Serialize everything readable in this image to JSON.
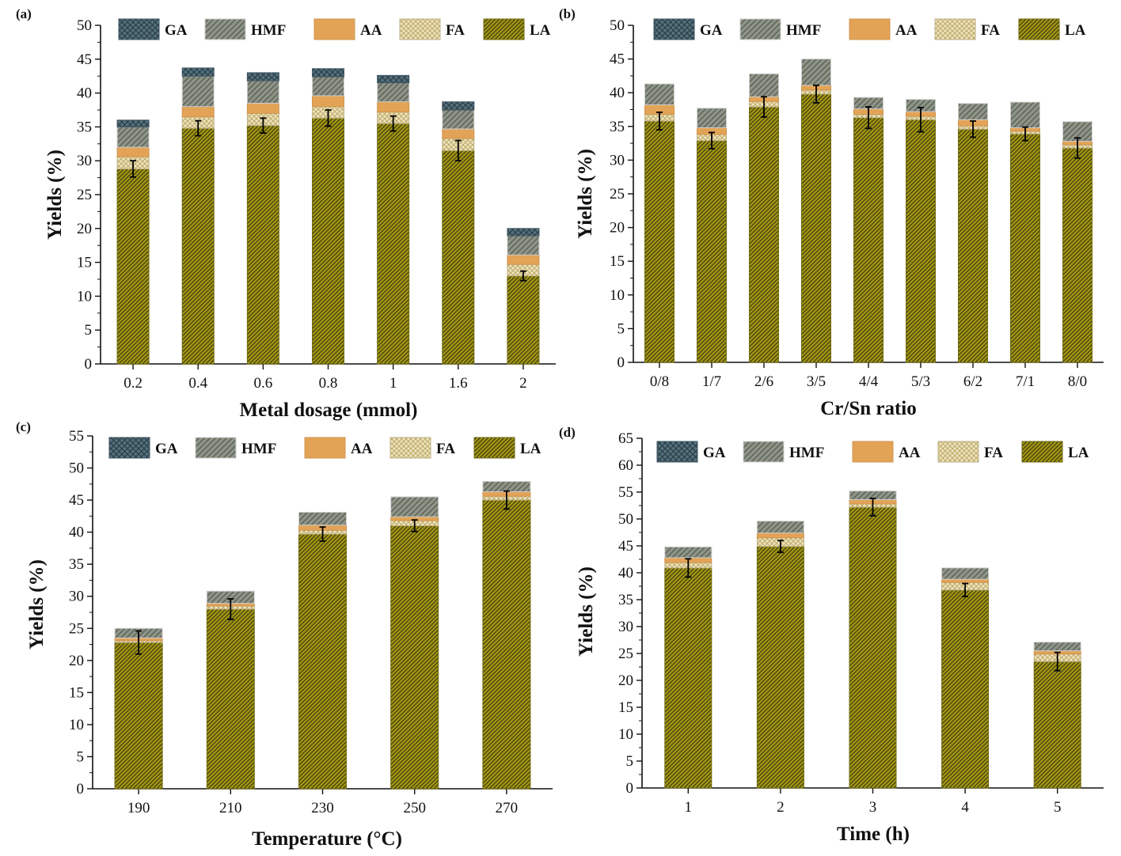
{
  "colors": {
    "LA": "#a49812",
    "LA_hatch": "#3d3a10",
    "FA": "#ece2bc",
    "FA_hatch": "#b9a460",
    "AA": "#e3a356",
    "HMF": "#8d9386",
    "HMF_hatch": "#4d5448",
    "GA": "#56717c",
    "GA_hatch": "#243a44",
    "axis": "#111111"
  },
  "legend": [
    "GA",
    "HMF",
    "AA",
    "FA",
    "LA"
  ],
  "chart_data": [
    {
      "panel": "(a)",
      "type": "bar",
      "stacked": true,
      "title": "",
      "xlabel": "Metal dosage (mmol)",
      "ylabel": "Yields (%)",
      "ylim": [
        0,
        50
      ],
      "yticks": [
        0,
        5,
        10,
        15,
        20,
        25,
        30,
        35,
        40,
        45,
        50
      ],
      "categories": [
        "0.2",
        "0.4",
        "0.6",
        "0.8",
        "1",
        "1.6",
        "2"
      ],
      "series": [
        {
          "name": "LA",
          "values": [
            28.8,
            34.8,
            35.2,
            36.3,
            35.5,
            31.5,
            13.0
          ]
        },
        {
          "name": "FA",
          "values": [
            1.8,
            1.7,
            1.8,
            1.7,
            1.7,
            1.8,
            1.7
          ]
        },
        {
          "name": "AA",
          "values": [
            1.4,
            1.5,
            1.5,
            1.6,
            1.5,
            1.4,
            1.4
          ]
        },
        {
          "name": "HMF",
          "values": [
            3.0,
            4.5,
            3.3,
            2.8,
            2.8,
            2.8,
            2.8
          ]
        },
        {
          "name": "GA",
          "values": [
            1.0,
            1.2,
            1.2,
            1.2,
            1.1,
            1.2,
            1.1
          ]
        }
      ],
      "errors": [
        1.2,
        1.1,
        1.1,
        1.2,
        1.1,
        1.5,
        0.7
      ]
    },
    {
      "panel": "(b)",
      "type": "bar",
      "stacked": true,
      "title": "",
      "xlabel": "Cr/Sn ratio",
      "ylabel": "Yields (%)",
      "ylim": [
        0,
        50
      ],
      "yticks": [
        0,
        5,
        10,
        15,
        20,
        25,
        30,
        35,
        40,
        45,
        50
      ],
      "categories": [
        "0/8",
        "1/7",
        "2/6",
        "3/5",
        "4/4",
        "5/3",
        "6/2",
        "7/1",
        "8/0"
      ],
      "series": [
        {
          "name": "LA",
          "values": [
            35.8,
            32.9,
            37.9,
            39.8,
            36.3,
            36.0,
            34.6,
            33.9,
            31.8
          ]
        },
        {
          "name": "FA",
          "values": [
            1.0,
            0.9,
            0.8,
            0.6,
            0.5,
            0.5,
            0.5,
            0.4,
            0.5
          ]
        },
        {
          "name": "AA",
          "values": [
            1.4,
            1.0,
            0.7,
            0.7,
            0.8,
            0.7,
            0.9,
            0.5,
            0.5
          ]
        },
        {
          "name": "HMF",
          "values": [
            3.1,
            2.9,
            3.4,
            3.9,
            1.7,
            1.8,
            2.4,
            3.8,
            2.9
          ]
        },
        {
          "name": "GA",
          "values": [
            0,
            0,
            0,
            0,
            0,
            0,
            0,
            0,
            0
          ]
        }
      ],
      "errors": [
        1.3,
        1.2,
        1.5,
        1.3,
        1.6,
        1.8,
        1.2,
        1.0,
        1.5
      ]
    },
    {
      "panel": "(c)",
      "type": "bar",
      "stacked": true,
      "title": "",
      "xlabel": "Temperature (°C)",
      "ylabel": "Yields (%)",
      "ylim": [
        0,
        55
      ],
      "yticks": [
        0,
        5,
        10,
        15,
        20,
        25,
        30,
        35,
        40,
        45,
        50,
        55
      ],
      "categories": [
        "190",
        "210",
        "230",
        "250",
        "270"
      ],
      "series": [
        {
          "name": "LA",
          "values": [
            22.8,
            28.0,
            39.7,
            41.0,
            45.0
          ]
        },
        {
          "name": "FA",
          "values": [
            0.3,
            0.5,
            0.6,
            0.8,
            0.6
          ]
        },
        {
          "name": "AA",
          "values": [
            0.4,
            0.4,
            0.8,
            0.6,
            0.7
          ]
        },
        {
          "name": "HMF",
          "values": [
            1.5,
            1.9,
            2.0,
            3.1,
            1.6
          ]
        },
        {
          "name": "GA",
          "values": [
            0,
            0,
            0,
            0,
            0
          ]
        }
      ],
      "errors": [
        1.8,
        1.6,
        1.1,
        0.9,
        1.4
      ]
    },
    {
      "panel": "(d)",
      "type": "bar",
      "stacked": true,
      "title": "",
      "xlabel": "Time (h)",
      "ylabel": "Yields (%)",
      "ylim": [
        0,
        65
      ],
      "yticks": [
        0,
        5,
        10,
        15,
        20,
        25,
        30,
        35,
        40,
        45,
        50,
        55,
        60,
        65
      ],
      "categories": [
        "1",
        "2",
        "3",
        "4",
        "5"
      ],
      "series": [
        {
          "name": "LA",
          "values": [
            40.9,
            44.9,
            52.2,
            36.8,
            23.5
          ]
        },
        {
          "name": "FA",
          "values": [
            1.0,
            1.6,
            0.6,
            1.4,
            1.4
          ]
        },
        {
          "name": "AA",
          "values": [
            0.9,
            0.9,
            0.8,
            0.6,
            0.6
          ]
        },
        {
          "name": "HMF",
          "values": [
            2.0,
            2.2,
            1.6,
            2.1,
            1.6
          ]
        },
        {
          "name": "GA",
          "values": [
            0,
            0,
            0,
            0,
            0
          ]
        }
      ],
      "errors": [
        1.7,
        1.1,
        1.6,
        1.2,
        1.7
      ]
    }
  ]
}
